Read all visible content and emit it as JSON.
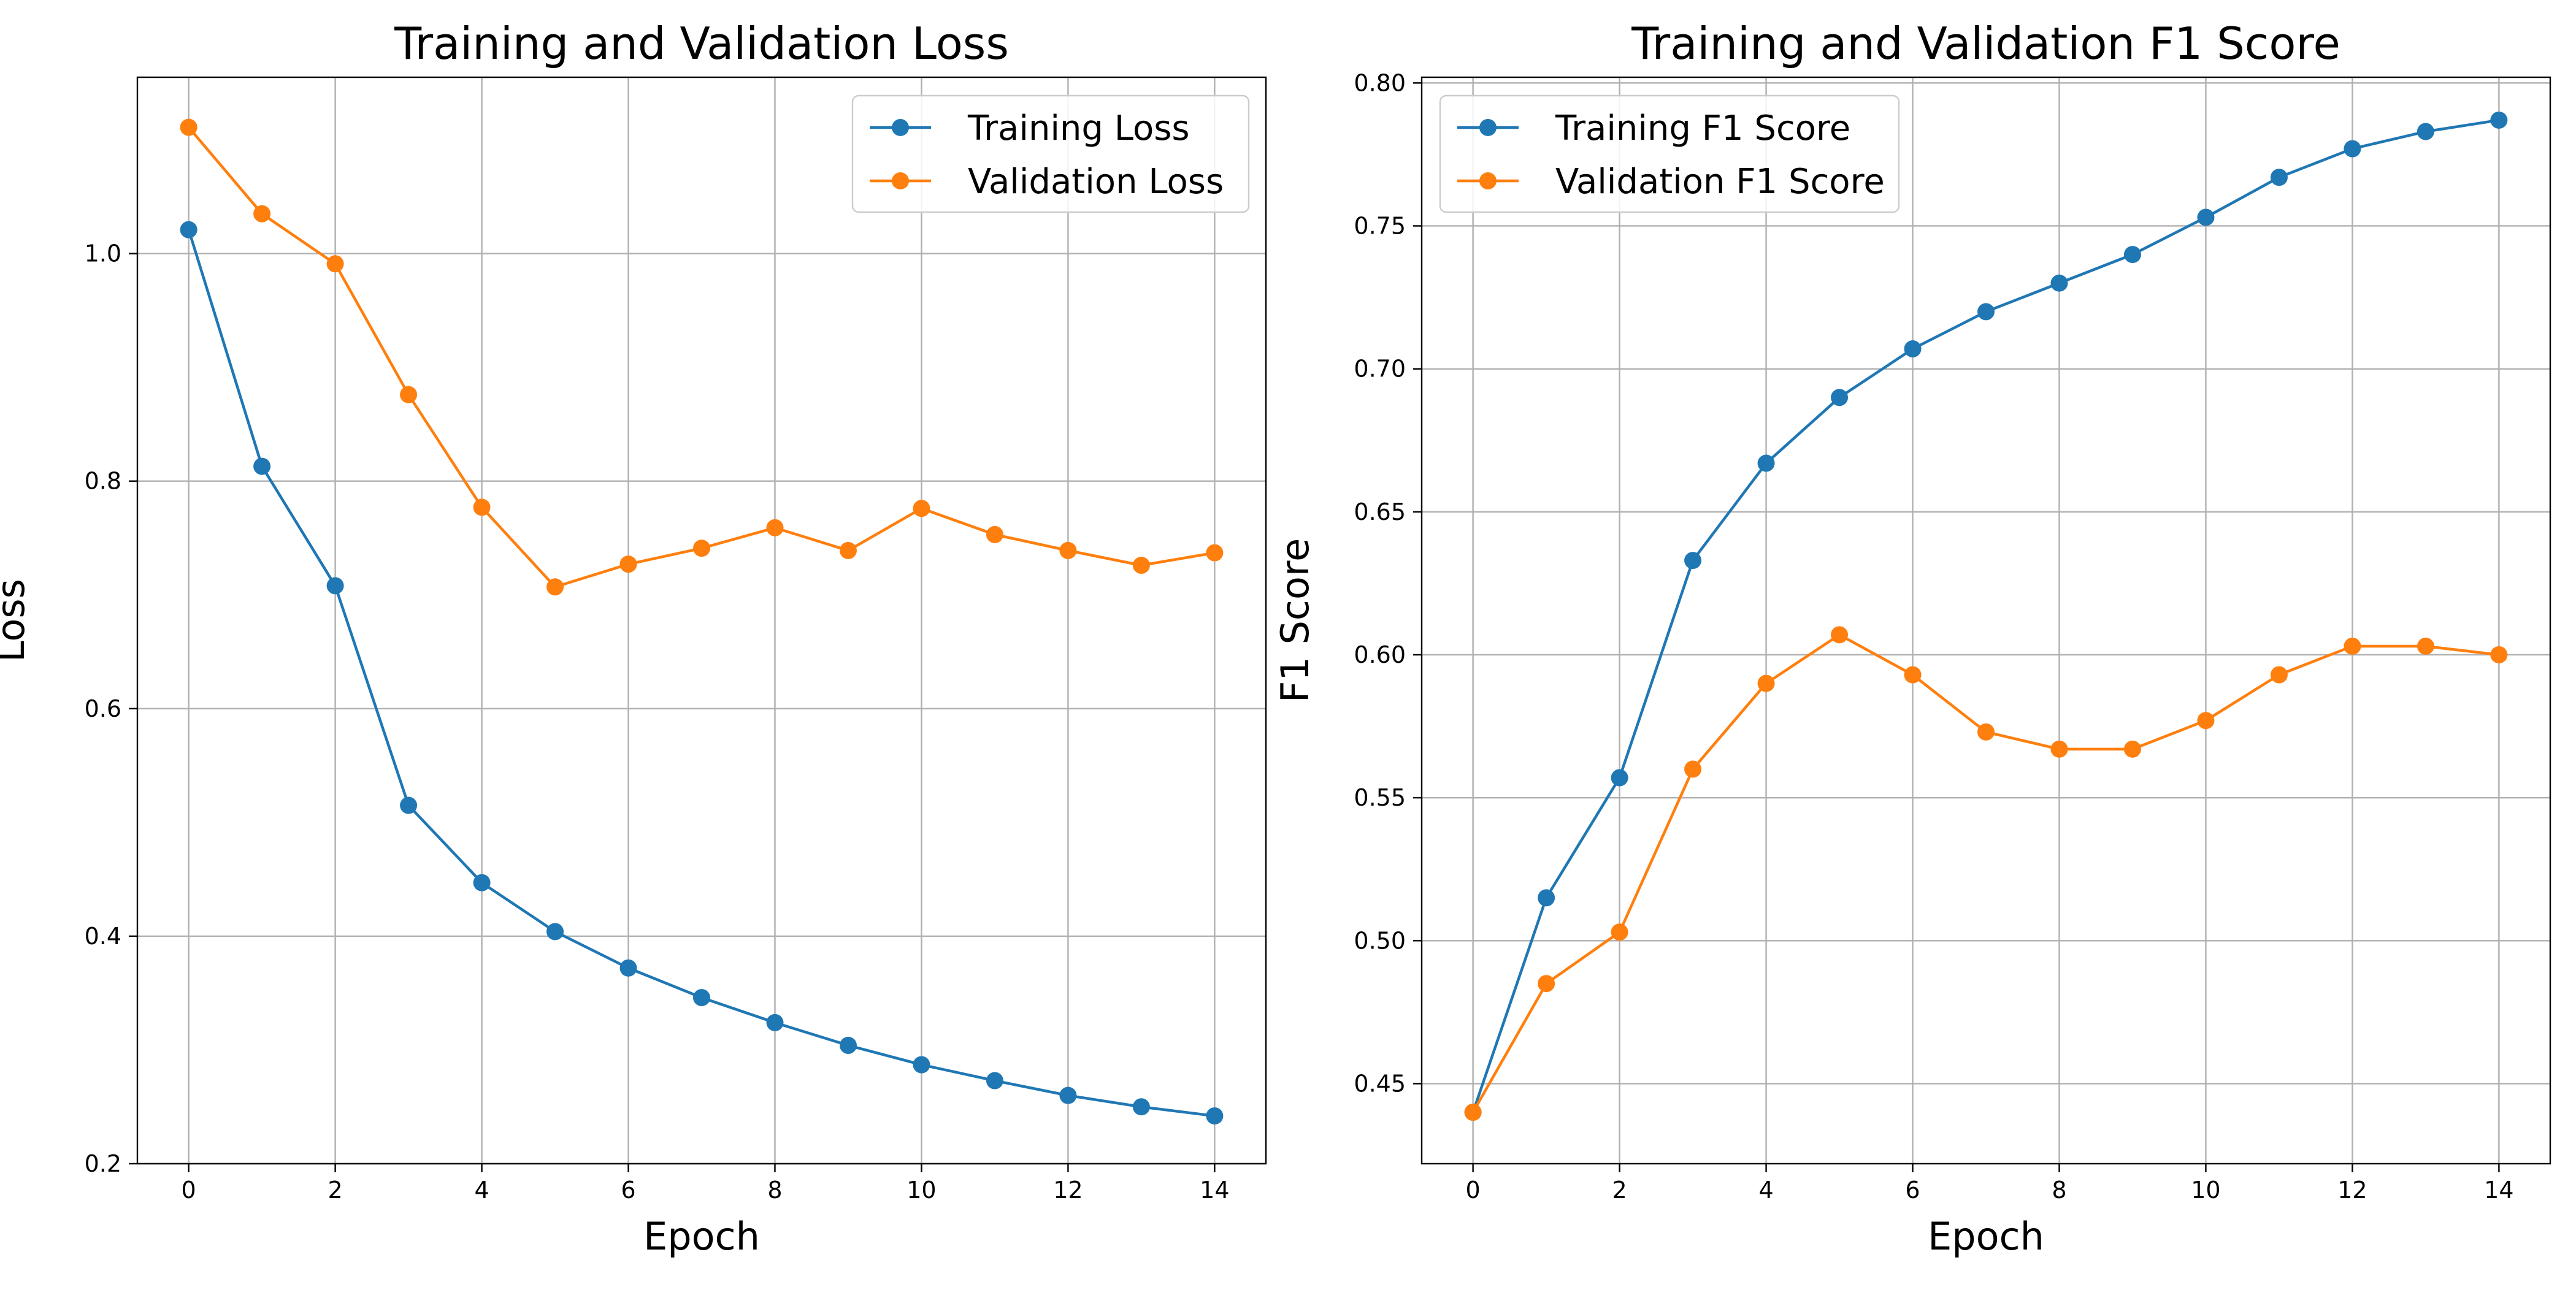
{
  "chart_data": [
    {
      "type": "line",
      "title": "Training and Validation Loss",
      "xlabel": "Epoch",
      "ylabel": "Loss",
      "xlim": [
        -0.7,
        14.7
      ],
      "ylim": [
        0.2,
        1.155
      ],
      "xticks": [
        0,
        2,
        4,
        6,
        8,
        10,
        12,
        14
      ],
      "yticks": [
        0.2,
        0.4,
        0.6,
        0.8,
        1.0
      ],
      "ytick_labels": [
        "0.2",
        "0.4",
        "0.6",
        "0.8",
        "1.0"
      ],
      "grid": true,
      "legend_position": "top-right",
      "x": [
        0,
        1,
        2,
        3,
        4,
        5,
        6,
        7,
        8,
        9,
        10,
        11,
        12,
        13,
        14
      ],
      "series": [
        {
          "name": "Training Loss",
          "color": "#1f77b4",
          "values": [
            1.021,
            0.813,
            0.708,
            0.515,
            0.447,
            0.404,
            0.372,
            0.346,
            0.324,
            0.304,
            0.287,
            0.273,
            0.26,
            0.25,
            0.242
          ]
        },
        {
          "name": "Validation Loss",
          "color": "#ff7f0e",
          "values": [
            1.111,
            1.035,
            0.991,
            0.876,
            0.777,
            0.707,
            0.727,
            0.741,
            0.759,
            0.739,
            0.776,
            0.753,
            0.739,
            0.726,
            0.737
          ]
        }
      ]
    },
    {
      "type": "line",
      "title": "Training and Validation F1 Score",
      "xlabel": "Epoch",
      "ylabel": "F1 Score",
      "xlim": [
        -0.7,
        14.7
      ],
      "ylim": [
        0.422,
        0.802
      ],
      "xticks": [
        0,
        2,
        4,
        6,
        8,
        10,
        12,
        14
      ],
      "yticks": [
        0.45,
        0.5,
        0.55,
        0.6,
        0.65,
        0.7,
        0.75,
        0.8
      ],
      "ytick_labels": [
        "0.45",
        "0.50",
        "0.55",
        "0.60",
        "0.65",
        "0.70",
        "0.75",
        "0.80"
      ],
      "grid": true,
      "legend_position": "top-left",
      "x": [
        0,
        1,
        2,
        3,
        4,
        5,
        6,
        7,
        8,
        9,
        10,
        11,
        12,
        13,
        14
      ],
      "series": [
        {
          "name": "Training F1 Score",
          "color": "#1f77b4",
          "values": [
            0.44,
            0.515,
            0.557,
            0.633,
            0.667,
            0.69,
            0.707,
            0.72,
            0.73,
            0.74,
            0.753,
            0.767,
            0.777,
            0.783,
            0.787
          ]
        },
        {
          "name": "Validation F1 Score",
          "color": "#ff7f0e",
          "values": [
            0.44,
            0.485,
            0.503,
            0.56,
            0.59,
            0.607,
            0.593,
            0.573,
            0.567,
            0.567,
            0.577,
            0.593,
            0.603,
            0.603,
            0.6
          ]
        }
      ]
    }
  ]
}
